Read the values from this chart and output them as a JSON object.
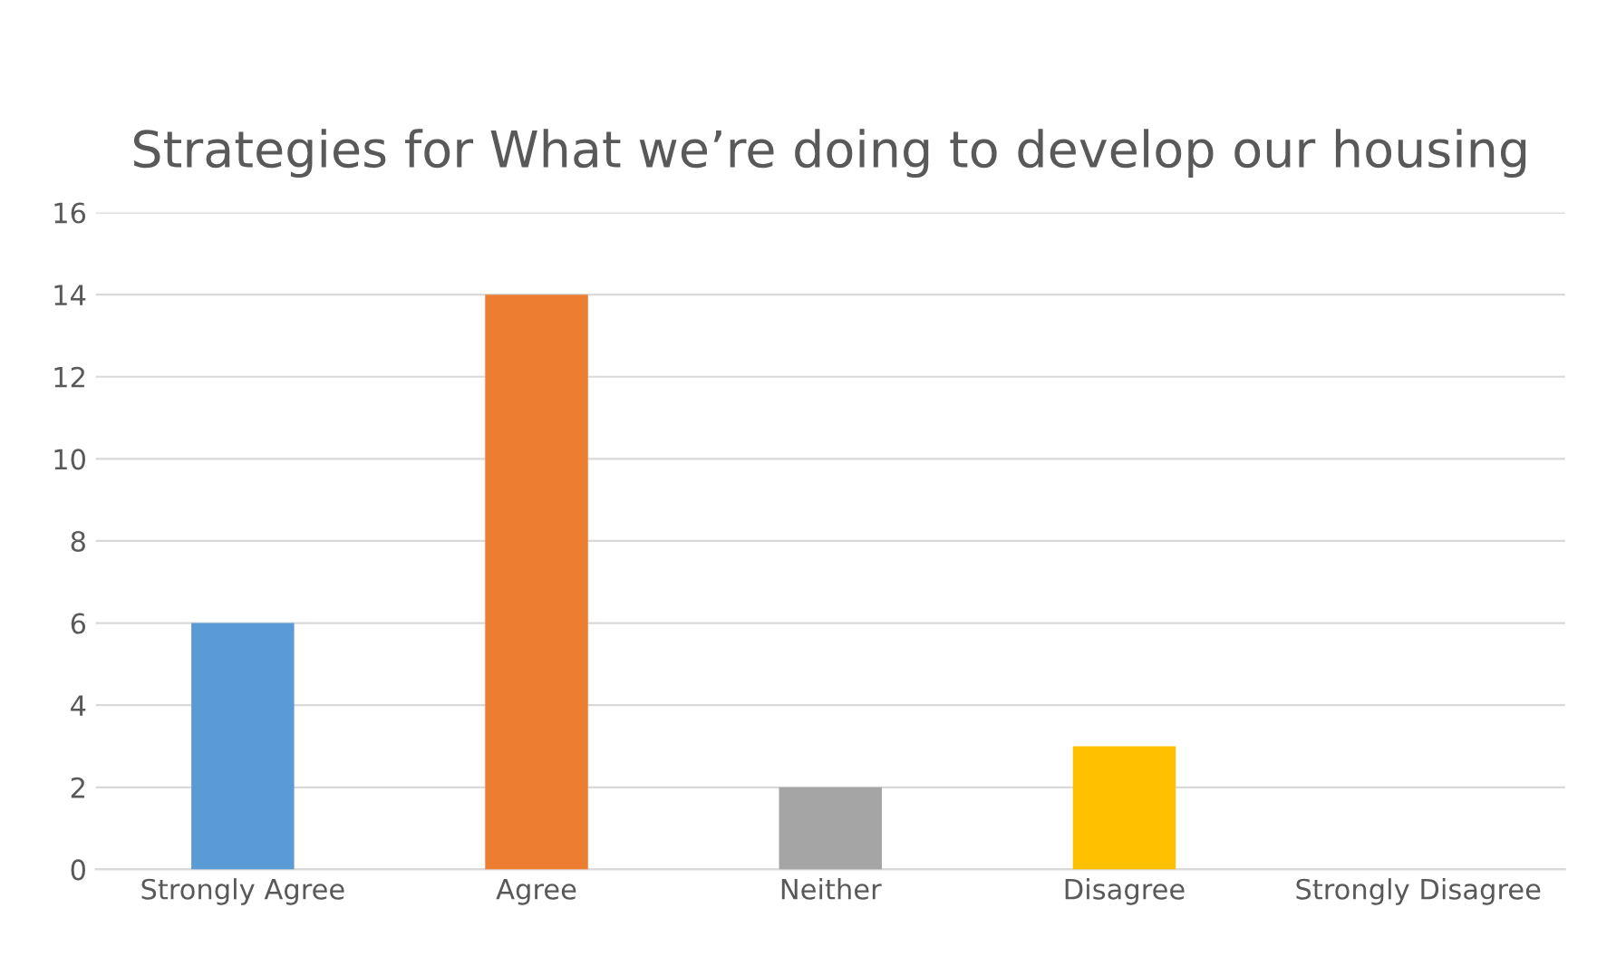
{
  "chart_data": {
    "type": "bar",
    "title": "Strategies for What we’re doing to develop our housing",
    "categories": [
      "Strongly Agree",
      "Agree",
      "Neither",
      "Disagree",
      "Strongly Disagree"
    ],
    "values": [
      6,
      14,
      2,
      3,
      0
    ],
    "colors": [
      "#5b9bd5",
      "#ed7d31",
      "#a5a5a5",
      "#ffc000",
      "#4472c4"
    ],
    "ylim": [
      0,
      16
    ],
    "yticks": [
      0,
      2,
      4,
      6,
      8,
      10,
      12,
      14,
      16
    ],
    "grid": "y",
    "legend": false
  }
}
